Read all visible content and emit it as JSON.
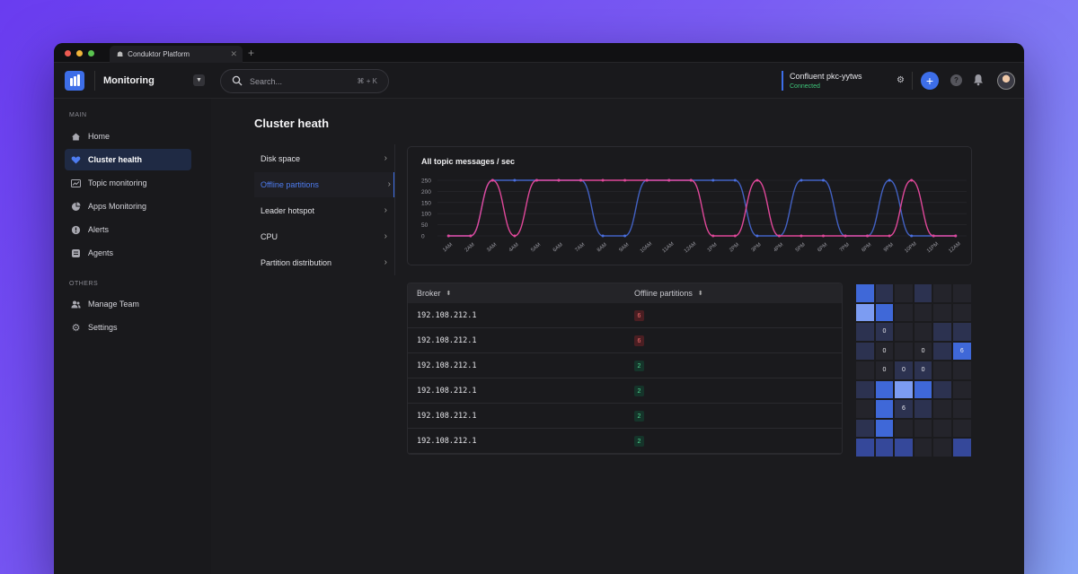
{
  "browser": {
    "tab_title": "Conduktor Platform",
    "tab_icon": "conduktor-logo-icon"
  },
  "header": {
    "app_title": "Monitoring",
    "search_placeholder": "Search...",
    "search_shortcut": "⌘ + K",
    "cluster_name": "Confluent pkc-yytws",
    "cluster_status": "Connected"
  },
  "sidebar": {
    "main_label": "MAIN",
    "others_label": "OTHERS",
    "main_items": [
      {
        "label": "Home",
        "icon": "home-icon"
      },
      {
        "label": "Cluster health",
        "icon": "heart-icon",
        "active": true
      },
      {
        "label": "Topic monitoring",
        "icon": "trend-icon"
      },
      {
        "label": "Apps Monitoring",
        "icon": "pie-icon"
      },
      {
        "label": "Alerts",
        "icon": "alert-icon"
      },
      {
        "label": "Agents",
        "icon": "agent-icon"
      }
    ],
    "other_items": [
      {
        "label": "Manage Team",
        "icon": "team-icon"
      },
      {
        "label": "Settings",
        "icon": "gear-icon"
      }
    ]
  },
  "page": {
    "title": "Cluster heath"
  },
  "metrics_menu": [
    {
      "label": "Disk space"
    },
    {
      "label": "Offline partitions",
      "active": true
    },
    {
      "label": "Leader hotspot"
    },
    {
      "label": "CPU"
    },
    {
      "label": "Partition distribution"
    }
  ],
  "colors": {
    "accent": "#3d6ee8",
    "series_blue": "#4a6fe0",
    "series_pink": "#e0489a",
    "connected": "#3ec67a",
    "badge_red": "#ef6b6b",
    "badge_green": "#4ed38d"
  },
  "chart_data": {
    "type": "line",
    "title": "All topic messages / sec",
    "x": [
      "1AM",
      "2AM",
      "3AM",
      "4AM",
      "5AM",
      "6AM",
      "7AM",
      "8AM",
      "9AM",
      "10AM",
      "11AM",
      "12AM",
      "1PM",
      "2PM",
      "3PM",
      "4PM",
      "5PM",
      "6PM",
      "7PM",
      "8PM",
      "9PM",
      "10PM",
      "11PM",
      "12AM"
    ],
    "yticks": [
      0,
      50,
      100,
      150,
      200,
      250
    ],
    "ylim": [
      0,
      250
    ],
    "series": [
      {
        "values": [
          0,
          0,
          250,
          250,
          250,
          250,
          250,
          0,
          0,
          250,
          250,
          250,
          250,
          250,
          0,
          0,
          250,
          250,
          0,
          0,
          250,
          0,
          0,
          0
        ]
      },
      {
        "values": [
          0,
          0,
          250,
          0,
          250,
          250,
          250,
          250,
          250,
          250,
          250,
          250,
          0,
          0,
          250,
          0,
          0,
          0,
          0,
          0,
          0,
          250,
          0,
          0
        ]
      }
    ]
  },
  "table": {
    "columns": [
      "Broker",
      "Offline partitions"
    ],
    "rows": [
      {
        "broker": "192.108.212.1",
        "offline": "6",
        "status": "red"
      },
      {
        "broker": "192.108.212.1",
        "offline": "6",
        "status": "red"
      },
      {
        "broker": "192.108.212.1",
        "offline": "2",
        "status": "green"
      },
      {
        "broker": "192.108.212.1",
        "offline": "2",
        "status": "green"
      },
      {
        "broker": "192.108.212.1",
        "offline": "2",
        "status": "green"
      },
      {
        "broker": "192.108.212.1",
        "offline": "2",
        "status": "green"
      }
    ]
  },
  "heatmap": {
    "cols": 6,
    "rows": 9,
    "cells": [
      [
        3,
        1,
        0,
        1,
        0,
        0
      ],
      [
        4,
        3,
        0,
        0,
        0,
        0
      ],
      [
        1,
        1,
        0,
        0,
        1,
        1
      ],
      [
        1,
        0,
        0,
        0,
        1,
        3
      ],
      [
        0,
        0,
        1,
        1,
        0,
        0
      ],
      [
        1,
        3,
        4,
        3,
        1,
        0
      ],
      [
        0,
        3,
        1,
        1,
        0,
        0
      ],
      [
        1,
        3,
        0,
        0,
        0,
        0
      ],
      [
        2,
        2,
        2,
        0,
        0,
        2
      ]
    ],
    "labels": [
      {
        "row": 2,
        "col": 1,
        "text": "0"
      },
      {
        "row": 3,
        "col": 1,
        "text": "0"
      },
      {
        "row": 3,
        "col": 3,
        "text": "0"
      },
      {
        "row": 3,
        "col": 5,
        "text": "6"
      },
      {
        "row": 4,
        "col": 1,
        "text": "0"
      },
      {
        "row": 4,
        "col": 2,
        "text": "0"
      },
      {
        "row": 4,
        "col": 3,
        "text": "0"
      },
      {
        "row": 6,
        "col": 2,
        "text": "6"
      }
    ]
  }
}
